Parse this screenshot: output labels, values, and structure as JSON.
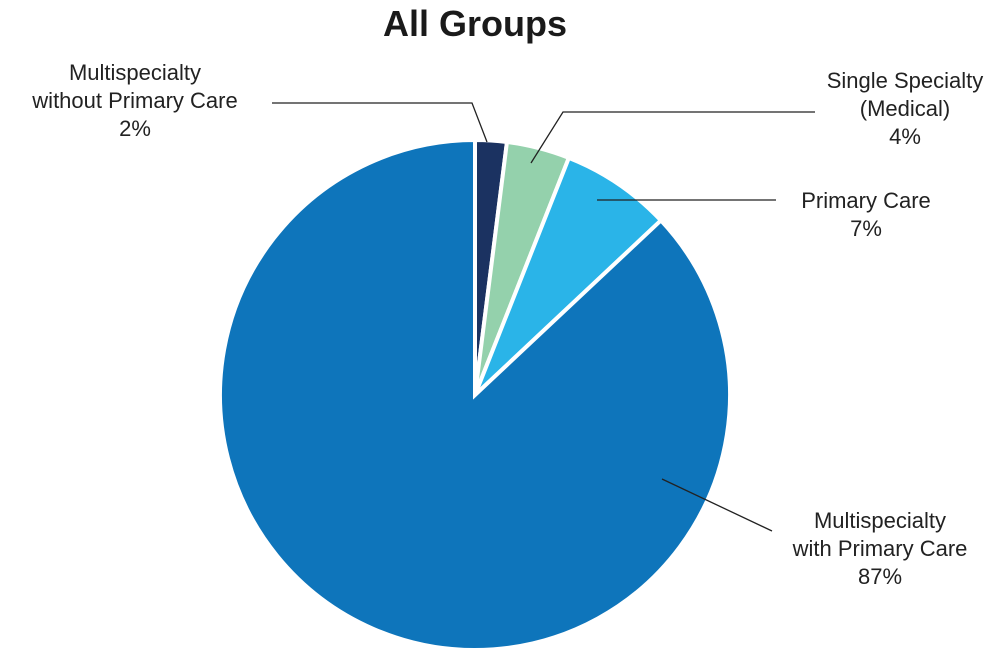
{
  "chart_data": {
    "type": "pie",
    "title": "All Groups",
    "slices": [
      {
        "label_lines": [
          "Multispecialty",
          "without Primary Care"
        ],
        "value": 2,
        "value_label": "2%",
        "color": "#1b3261"
      },
      {
        "label_lines": [
          "Single Specialty",
          "(Medical)"
        ],
        "value": 4,
        "value_label": "4%",
        "color": "#94d1ac"
      },
      {
        "label_lines": [
          "Primary Care"
        ],
        "value": 7,
        "value_label": "7%",
        "color": "#2ab4e8"
      },
      {
        "label_lines": [
          "Multispecialty",
          "with Primary Care"
        ],
        "value": 87,
        "value_label": "87%",
        "color": "#0e75bb"
      }
    ],
    "start_angle": "12 o'clock",
    "direction": "clockwise"
  }
}
